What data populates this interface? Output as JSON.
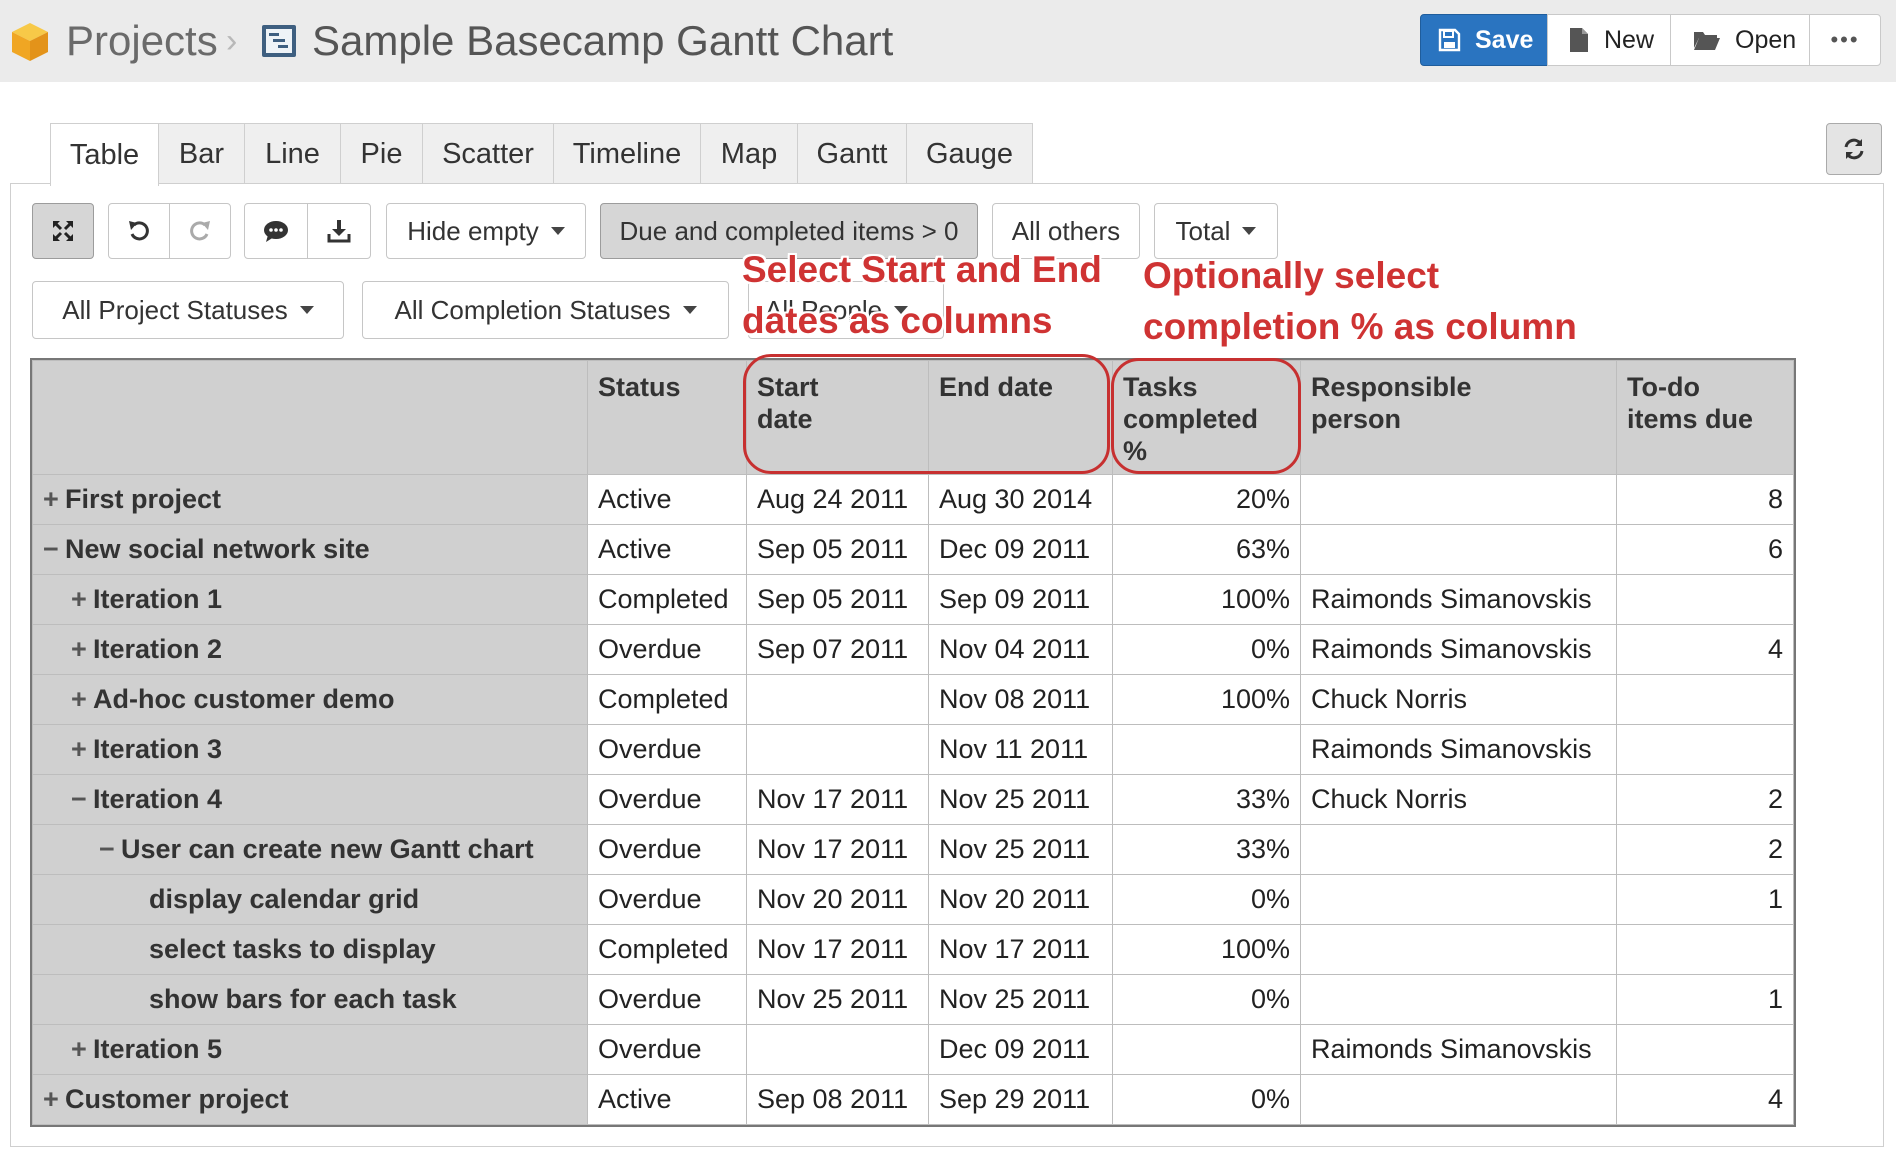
{
  "header": {
    "breadcrumb_root": "Projects",
    "separator": "›",
    "title": "Sample Basecamp Gantt Chart",
    "buttons": {
      "save": "Save",
      "new": "New",
      "open": "Open",
      "more": "•••"
    },
    "accent_color": "#2a74c0"
  },
  "tabs": [
    "Table",
    "Bar",
    "Line",
    "Pie",
    "Scatter",
    "Timeline",
    "Map",
    "Gantt",
    "Gauge"
  ],
  "active_tab": "Table",
  "toolbar": {
    "hide_empty": "Hide empty",
    "filter": "Due and completed items > 0",
    "all_others": "All others",
    "total": "Total",
    "project_statuses": "All Project Statuses",
    "completion_statuses": "All Completion Statuses",
    "people": "All People"
  },
  "annotations": {
    "dates_line1": "Select Start and End",
    "dates_line2": "dates as columns",
    "completion_line1": "Optionally select",
    "completion_line2": "completion % as column",
    "color": "#cf3333"
  },
  "table": {
    "columns": [
      "Status",
      "Start date",
      "End date",
      "Tasks completed %",
      "Responsible person",
      "To-do items due"
    ],
    "column_lines": [
      [
        "Status"
      ],
      [
        "Start",
        "date"
      ],
      [
        "End date"
      ],
      [
        "Tasks",
        "completed",
        "%"
      ],
      [
        "Responsible",
        "person"
      ],
      [
        "To-do",
        "items due"
      ]
    ],
    "rows": [
      {
        "name": "First project",
        "level": 0,
        "toggle": "+",
        "status": "Active",
        "start": "Aug 24 2011",
        "end": "Aug 30 2014",
        "pct": "20%",
        "person": "",
        "todo": "8"
      },
      {
        "name": "New social network site",
        "level": 0,
        "toggle": "−",
        "status": "Active",
        "start": "Sep 05 2011",
        "end": "Dec 09 2011",
        "pct": "63%",
        "person": "",
        "todo": "6"
      },
      {
        "name": "Iteration 1",
        "level": 1,
        "toggle": "+",
        "status": "Completed",
        "start": "Sep 05 2011",
        "end": "Sep 09 2011",
        "pct": "100%",
        "person": "Raimonds Simanovskis",
        "todo": ""
      },
      {
        "name": "Iteration 2",
        "level": 1,
        "toggle": "+",
        "status": "Overdue",
        "start": "Sep 07 2011",
        "end": "Nov 04 2011",
        "pct": "0%",
        "person": "Raimonds Simanovskis",
        "todo": "4"
      },
      {
        "name": "Ad-hoc customer demo",
        "level": 1,
        "toggle": "+",
        "status": "Completed",
        "start": "",
        "end": "Nov 08 2011",
        "pct": "100%",
        "person": "Chuck Norris",
        "todo": ""
      },
      {
        "name": "Iteration 3",
        "level": 1,
        "toggle": "+",
        "status": "Overdue",
        "start": "",
        "end": "Nov 11 2011",
        "pct": "",
        "person": "Raimonds Simanovskis",
        "todo": ""
      },
      {
        "name": "Iteration 4",
        "level": 1,
        "toggle": "−",
        "status": "Overdue",
        "start": "Nov 17 2011",
        "end": "Nov 25 2011",
        "pct": "33%",
        "person": "Chuck Norris",
        "todo": "2"
      },
      {
        "name": "User can create new Gantt chart",
        "level": 2,
        "toggle": "−",
        "status": "Overdue",
        "start": "Nov 17 2011",
        "end": "Nov 25 2011",
        "pct": "33%",
        "person": "",
        "todo": "2"
      },
      {
        "name": "display calendar grid",
        "level": 3,
        "toggle": "",
        "status": "Overdue",
        "start": "Nov 20 2011",
        "end": "Nov 20 2011",
        "pct": "0%",
        "person": "",
        "todo": "1"
      },
      {
        "name": "select tasks to display",
        "level": 3,
        "toggle": "",
        "status": "Completed",
        "start": "Nov 17 2011",
        "end": "Nov 17 2011",
        "pct": "100%",
        "person": "",
        "todo": ""
      },
      {
        "name": "show bars for each task",
        "level": 3,
        "toggle": "",
        "status": "Overdue",
        "start": "Nov 25 2011",
        "end": "Nov 25 2011",
        "pct": "0%",
        "person": "",
        "todo": "1"
      },
      {
        "name": "Iteration 5",
        "level": 1,
        "toggle": "+",
        "status": "Overdue",
        "start": "",
        "end": "Dec 09 2011",
        "pct": "",
        "person": "Raimonds Simanovskis",
        "todo": ""
      },
      {
        "name": "Customer project",
        "level": 0,
        "toggle": "+",
        "status": "Active",
        "start": "Sep 08 2011",
        "end": "Sep 29 2011",
        "pct": "0%",
        "person": "",
        "todo": "4"
      }
    ]
  }
}
